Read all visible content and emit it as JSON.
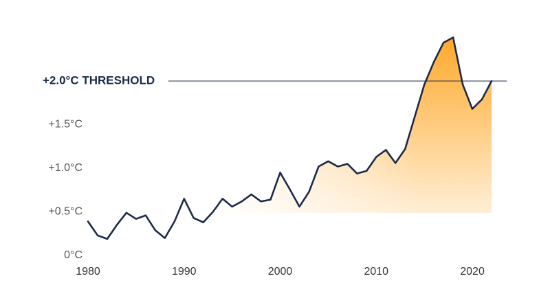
{
  "chart_data": {
    "type": "line",
    "x": [
      1980,
      1981,
      1982,
      1983,
      1984,
      1985,
      1986,
      1987,
      1988,
      1989,
      1990,
      1991,
      1992,
      1993,
      1994,
      1995,
      1996,
      1997,
      1998,
      1999,
      2000,
      2001,
      2002,
      2003,
      2004,
      2005,
      2006,
      2007,
      2008,
      2009,
      2010,
      2011,
      2012,
      2013,
      2014,
      2015,
      2016,
      2017,
      2018,
      2019,
      2020,
      2021,
      2022
    ],
    "values": [
      0.39,
      0.23,
      0.19,
      0.35,
      0.49,
      0.42,
      0.46,
      0.29,
      0.2,
      0.39,
      0.65,
      0.43,
      0.38,
      0.5,
      0.65,
      0.56,
      0.62,
      0.7,
      0.62,
      0.64,
      0.95,
      0.76,
      0.56,
      0.73,
      1.02,
      1.08,
      1.02,
      1.05,
      0.94,
      0.97,
      1.13,
      1.21,
      1.06,
      1.22,
      1.59,
      1.96,
      2.22,
      2.44,
      2.5,
      1.96,
      1.68,
      1.79,
      2.0
    ],
    "color": "#1b2a4a",
    "fill_color": "#ffa41f",
    "xlim": [
      1980,
      2022
    ],
    "ylim": [
      0,
      2.5
    ],
    "xticks": [
      1980,
      1990,
      2000,
      2010,
      2020
    ],
    "yticks": [
      {
        "value": 0,
        "label": "0°C"
      },
      {
        "value": 0.5,
        "label": "+0.5°C"
      },
      {
        "value": 1,
        "label": "+1.0°C"
      },
      {
        "value": 1.5,
        "label": "+1.5°C"
      }
    ],
    "threshold": {
      "value": 2,
      "label": "+2.0°C THRESHOLD"
    }
  }
}
